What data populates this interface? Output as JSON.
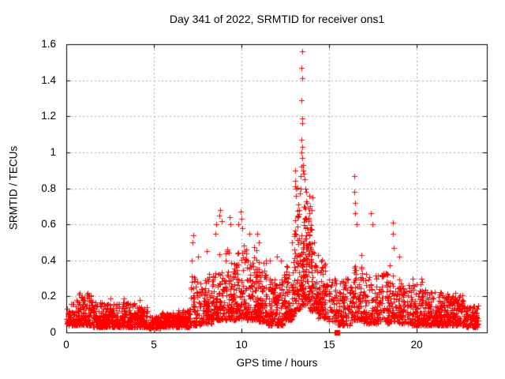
{
  "title": "Day 341 of 2022, SRMTID for receiver ons1",
  "colors": {
    "background": "#ffffff",
    "points": "#ff0000",
    "axis": "#000000",
    "grid": "#a8a8a8",
    "text": "#000000"
  },
  "chart_data": {
    "type": "scatter",
    "title": "Day 341 of 2022, SRMTID for receiver ons1",
    "xlabel": "GPS time / hours",
    "ylabel": "SRMTID / TECUs",
    "xlim": [
      0,
      24
    ],
    "ylim": [
      0,
      1.6
    ],
    "x_ticks": [
      {
        "v": 0,
        "label": "0"
      },
      {
        "v": 5,
        "label": "5"
      },
      {
        "v": 10,
        "label": "10"
      },
      {
        "v": 15,
        "label": "15"
      },
      {
        "v": 20,
        "label": "20"
      }
    ],
    "y_ticks": [
      {
        "v": 0,
        "label": "0"
      },
      {
        "v": 0.2,
        "label": "0.2"
      },
      {
        "v": 0.4,
        "label": "0.4"
      },
      {
        "v": 0.6,
        "label": "0.6"
      },
      {
        "v": 0.8,
        "label": "0.8"
      },
      {
        "v": 1,
        "label": "1"
      },
      {
        "v": 1.2,
        "label": "1.2"
      },
      {
        "v": 1.4,
        "label": "1.4"
      },
      {
        "v": 1.6,
        "label": "1.6"
      }
    ],
    "grid": true,
    "legend": "none",
    "marker": "plus",
    "marker_size": 7,
    "seed": 1341,
    "envelope_bins": [
      [
        0.0,
        0.6,
        70,
        0.04,
        0.16,
        1.9
      ],
      [
        0.6,
        1.0,
        55,
        0.04,
        0.2,
        1.8
      ],
      [
        1.0,
        1.5,
        65,
        0.04,
        0.21,
        1.8
      ],
      [
        1.5,
        2.3,
        110,
        0.03,
        0.17,
        1.8
      ],
      [
        2.3,
        3.2,
        120,
        0.03,
        0.16,
        1.8
      ],
      [
        3.2,
        4.0,
        110,
        0.03,
        0.17,
        1.8
      ],
      [
        4.0,
        4.7,
        95,
        0.03,
        0.14,
        1.7
      ],
      [
        4.7,
        5.4,
        95,
        0.02,
        0.09,
        1.5
      ],
      [
        5.4,
        6.3,
        120,
        0.03,
        0.11,
        1.5
      ],
      [
        6.3,
        7.1,
        105,
        0.03,
        0.13,
        1.6
      ],
      [
        7.1,
        7.6,
        60,
        0.04,
        0.5,
        2.4
      ],
      [
        7.6,
        8.3,
        95,
        0.05,
        0.48,
        2.1
      ],
      [
        8.3,
        9.1,
        110,
        0.07,
        0.62,
        1.9
      ],
      [
        9.1,
        9.7,
        85,
        0.07,
        0.55,
        1.9
      ],
      [
        9.7,
        10.3,
        95,
        0.08,
        0.62,
        1.9
      ],
      [
        10.3,
        10.9,
        100,
        0.07,
        0.52,
        1.9
      ],
      [
        10.9,
        11.4,
        85,
        0.06,
        0.45,
        1.9
      ],
      [
        11.4,
        12.4,
        150,
        0.04,
        0.3,
        1.8
      ],
      [
        12.4,
        13.0,
        100,
        0.07,
        0.45,
        1.8
      ],
      [
        13.0,
        13.4,
        75,
        0.12,
        0.92,
        1.7
      ],
      [
        13.4,
        13.85,
        110,
        0.15,
        1.0,
        1.6
      ],
      [
        13.85,
        14.35,
        95,
        0.12,
        0.7,
        1.7
      ],
      [
        14.35,
        14.85,
        80,
        0.08,
        0.45,
        1.7
      ],
      [
        14.85,
        15.45,
        55,
        0.06,
        0.3,
        1.7
      ],
      [
        15.45,
        16.25,
        100,
        0.04,
        0.3,
        1.7
      ],
      [
        16.25,
        16.95,
        95,
        0.07,
        0.55,
        1.9
      ],
      [
        16.95,
        17.6,
        80,
        0.05,
        0.4,
        1.9
      ],
      [
        17.6,
        18.45,
        95,
        0.05,
        0.33,
        1.8
      ],
      [
        18.45,
        19.0,
        65,
        0.06,
        0.45,
        1.9
      ],
      [
        19.0,
        19.7,
        75,
        0.05,
        0.3,
        1.8
      ],
      [
        19.7,
        20.6,
        115,
        0.04,
        0.27,
        1.8
      ],
      [
        20.6,
        21.4,
        105,
        0.04,
        0.23,
        1.7
      ],
      [
        21.4,
        22.0,
        90,
        0.04,
        0.22,
        1.7
      ],
      [
        22.0,
        22.7,
        95,
        0.04,
        0.21,
        1.6
      ],
      [
        22.7,
        23.5,
        95,
        0.03,
        0.15,
        1.6
      ]
    ],
    "outlier_points": [
      [
        0.7,
        0.21
      ],
      [
        0.78,
        0.22
      ],
      [
        1.15,
        0.21
      ],
      [
        1.22,
        0.22
      ],
      [
        1.3,
        0.2
      ],
      [
        2.5,
        0.19
      ],
      [
        3.3,
        0.19
      ],
      [
        4.2,
        0.18
      ],
      [
        7.2,
        0.5
      ],
      [
        7.25,
        0.54
      ],
      [
        7.5,
        0.42
      ],
      [
        8.0,
        0.45
      ],
      [
        8.5,
        0.55
      ],
      [
        8.56,
        0.6
      ],
      [
        8.74,
        0.65
      ],
      [
        8.8,
        0.68
      ],
      [
        8.86,
        0.62
      ],
      [
        9.3,
        0.64
      ],
      [
        9.36,
        0.6
      ],
      [
        9.8,
        0.6
      ],
      [
        9.95,
        0.67
      ],
      [
        10.0,
        0.63
      ],
      [
        10.06,
        0.58
      ],
      [
        10.45,
        0.55
      ],
      [
        10.9,
        0.55
      ],
      [
        11.0,
        0.5
      ],
      [
        11.6,
        0.4
      ],
      [
        12.0,
        0.42
      ],
      [
        12.25,
        0.4
      ],
      [
        12.9,
        0.5
      ],
      [
        13.05,
        0.9
      ],
      [
        13.08,
        0.84
      ],
      [
        13.3,
        0.68
      ],
      [
        13.45,
        1.56
      ],
      [
        13.44,
        1.47
      ],
      [
        13.46,
        1.41
      ],
      [
        13.42,
        1.29
      ],
      [
        13.45,
        1.19
      ],
      [
        13.48,
        1.16
      ],
      [
        13.44,
        1.07
      ],
      [
        13.46,
        1.03
      ],
      [
        13.43,
        1.0
      ],
      [
        13.47,
        0.97
      ],
      [
        13.5,
        0.93
      ],
      [
        13.4,
        0.92
      ],
      [
        13.38,
        0.87
      ],
      [
        13.52,
        0.9
      ],
      [
        13.55,
        0.88
      ],
      [
        13.6,
        0.85
      ],
      [
        13.65,
        0.8
      ],
      [
        13.7,
        0.78
      ],
      [
        13.75,
        0.72
      ],
      [
        13.9,
        0.7
      ],
      [
        14.0,
        0.68
      ],
      [
        14.05,
        0.75
      ],
      [
        16.42,
        0.87
      ],
      [
        16.45,
        0.78
      ],
      [
        16.48,
        0.72
      ],
      [
        16.5,
        0.66
      ],
      [
        16.55,
        0.6
      ],
      [
        17.4,
        0.66
      ],
      [
        17.45,
        0.6
      ],
      [
        18.62,
        0.61
      ],
      [
        18.65,
        0.55
      ],
      [
        18.7,
        0.47
      ],
      [
        19.0,
        0.42
      ],
      [
        19.75,
        0.3
      ],
      [
        20.25,
        0.3
      ],
      [
        20.3,
        0.28
      ],
      [
        22.2,
        0.22
      ]
    ],
    "special_points": [
      {
        "x": 15.45,
        "y": 0.0,
        "marker": "filled-square",
        "color": "#ff0000"
      }
    ]
  }
}
